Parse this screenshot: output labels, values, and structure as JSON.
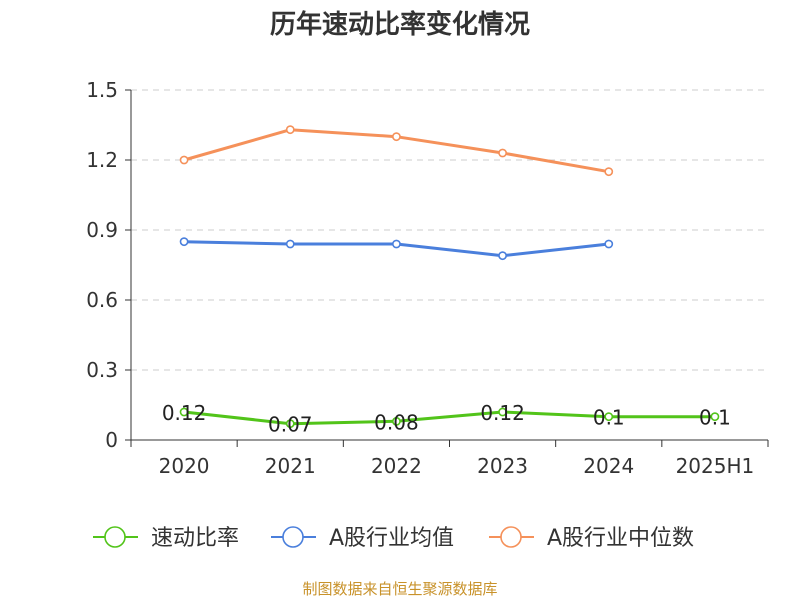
{
  "chart_data": {
    "type": "line",
    "title": "历年速动比率变化情况",
    "categories": [
      "2020",
      "2021",
      "2022",
      "2023",
      "2024",
      "2025H1"
    ],
    "ylim": [
      0,
      1.5
    ],
    "yticks": [
      "0",
      "0.3",
      "0.6",
      "0.9",
      "1.2",
      "1.5"
    ],
    "grid": true,
    "legend_position": "bottom",
    "series": [
      {
        "name": "速动比率",
        "color": "#52c41a",
        "values": [
          0.12,
          0.07,
          0.08,
          0.12,
          0.1,
          0.1
        ],
        "labels": [
          "0.12",
          "0.07",
          "0.08",
          "0.12",
          "0.1",
          "0.1"
        ]
      },
      {
        "name": "A股行业均值",
        "color": "#4a7fdc",
        "values": [
          0.85,
          0.84,
          0.84,
          0.79,
          0.84,
          null
        ]
      },
      {
        "name": "A股行业中位数",
        "color": "#f5915a",
        "values": [
          1.2,
          1.33,
          1.3,
          1.23,
          1.15,
          null
        ]
      }
    ],
    "source": "制图数据来自恒生聚源数据库"
  }
}
